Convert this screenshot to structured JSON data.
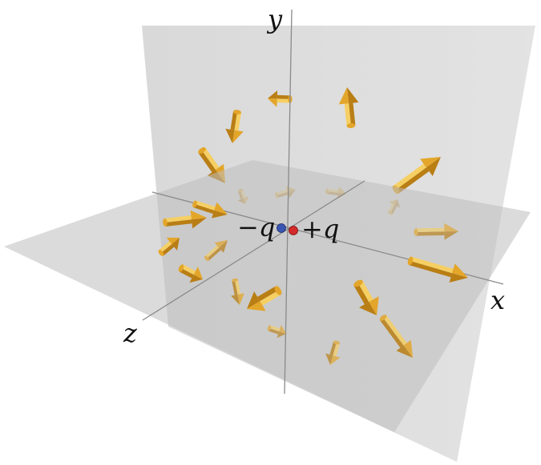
{
  "axes": {
    "x": "x",
    "y": "y",
    "z": "z"
  },
  "charges": [
    {
      "sign": "−",
      "symbol": "q",
      "color": "#3a55b0"
    },
    {
      "sign": "+",
      "symbol": "q",
      "color": "#d42a2a"
    }
  ],
  "colors": {
    "arrow": "#e3a62a",
    "arrow_dark": "#b97e14",
    "arrow_light": "#f6cf63",
    "plane_vertical": "#d9d9d9",
    "plane_horizontal": "#c8c8c8",
    "axis_line": "#8a8a8a"
  }
}
